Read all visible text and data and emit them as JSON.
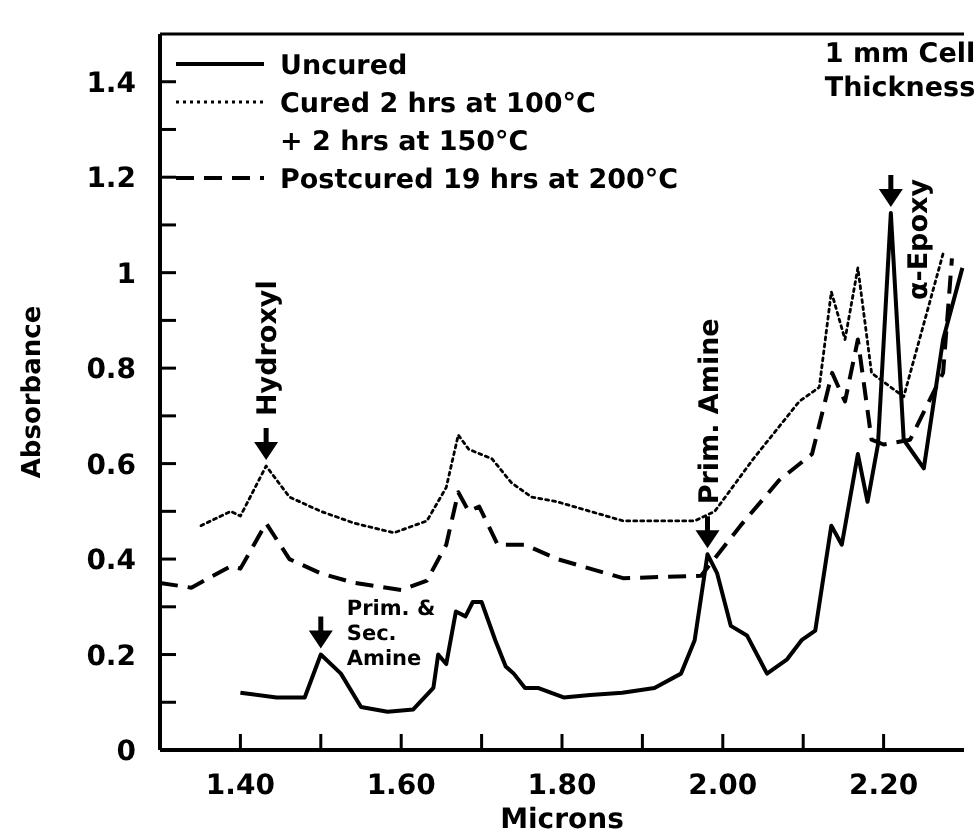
{
  "chart_data": {
    "type": "line",
    "xlabel": "Microns",
    "ylabel": "Absorbance",
    "xlim": [
      1.3,
      2.3
    ],
    "ylim": [
      0,
      1.5
    ],
    "xticks": [
      {
        "value": 1.4,
        "label": "1.40"
      },
      {
        "value": 1.5,
        "label": null
      },
      {
        "value": 1.6,
        "label": "1.60"
      },
      {
        "value": 1.7,
        "label": null
      },
      {
        "value": 1.8,
        "label": "1.80"
      },
      {
        "value": 1.9,
        "label": null
      },
      {
        "value": 2.0,
        "label": "2.00"
      },
      {
        "value": 2.1,
        "label": null
      },
      {
        "value": 2.2,
        "label": "2.20"
      }
    ],
    "yticks": [
      0,
      {
        "value": 0.1,
        "label": null
      },
      0.2,
      {
        "value": 0.3,
        "label": null
      },
      0.4,
      {
        "value": 0.5,
        "label": null
      },
      0.6,
      {
        "value": 0.7,
        "label": null
      },
      0.8,
      {
        "value": 0.9,
        "label": null
      },
      1.0,
      {
        "value": 1.1,
        "label": null
      },
      1.2,
      {
        "value": 1.3,
        "label": null
      },
      1.4
    ],
    "grid": false,
    "legend": "top left",
    "marker": "none",
    "series": [
      {
        "name": "Uncured",
        "color": "#000000",
        "line_style": "solid",
        "x": [
          1.4,
          1.445,
          1.48,
          1.5,
          1.525,
          1.55,
          1.583,
          1.615,
          1.64,
          1.646,
          1.656,
          1.668,
          1.68,
          1.689,
          1.7,
          1.717,
          1.73,
          1.74,
          1.754,
          1.77,
          1.802,
          1.835,
          1.875,
          1.915,
          1.948,
          1.965,
          1.981,
          1.993,
          2.01,
          2.03,
          2.055,
          2.08,
          2.098,
          2.115,
          2.135,
          2.148,
          2.168,
          2.18,
          2.193,
          2.209,
          2.225,
          2.25,
          2.274,
          2.298
        ],
        "values": [
          0.12,
          0.11,
          0.11,
          0.2,
          0.16,
          0.09,
          0.08,
          0.085,
          0.13,
          0.2,
          0.18,
          0.29,
          0.28,
          0.31,
          0.31,
          0.23,
          0.175,
          0.16,
          0.13,
          0.13,
          0.11,
          0.115,
          0.12,
          0.13,
          0.16,
          0.23,
          0.41,
          0.37,
          0.26,
          0.24,
          0.16,
          0.19,
          0.23,
          0.25,
          0.47,
          0.43,
          0.62,
          0.52,
          0.64,
          1.125,
          0.65,
          0.59,
          0.86,
          1.01
        ]
      },
      {
        "name": "Cured 2 hrs at 100°C\n+ 2 hrs at 150°C",
        "color": "#000000",
        "line_style": "dotted",
        "x": [
          1.351,
          1.388,
          1.4,
          1.432,
          1.461,
          1.5,
          1.542,
          1.591,
          1.632,
          1.656,
          1.671,
          1.684,
          1.713,
          1.737,
          1.762,
          1.794,
          1.876,
          1.9,
          1.965,
          1.99,
          2.038,
          2.095,
          2.12,
          2.135,
          2.152,
          2.168,
          2.185,
          2.225,
          2.274
        ],
        "values": [
          0.47,
          0.5,
          0.49,
          0.595,
          0.53,
          0.5,
          0.475,
          0.455,
          0.48,
          0.55,
          0.66,
          0.63,
          0.61,
          0.56,
          0.53,
          0.52,
          0.48,
          0.48,
          0.48,
          0.5,
          0.61,
          0.73,
          0.76,
          0.96,
          0.86,
          1.01,
          0.79,
          0.74,
          1.04
        ]
      },
      {
        "name": "Postcured 19 hrs at 200°C",
        "color": "#000000",
        "line_style": "dashed",
        "x": [
          1.3,
          1.339,
          1.388,
          1.4,
          1.432,
          1.461,
          1.5,
          1.542,
          1.6,
          1.632,
          1.656,
          1.671,
          1.684,
          1.697,
          1.72,
          1.74,
          1.754,
          1.794,
          1.876,
          1.973,
          2.022,
          2.07,
          2.111,
          2.136,
          2.152,
          2.168,
          2.185,
          2.2,
          2.233,
          2.274,
          2.285
        ],
        "values": [
          0.35,
          0.34,
          0.385,
          0.38,
          0.475,
          0.4,
          0.37,
          0.35,
          0.335,
          0.355,
          0.43,
          0.54,
          0.5,
          0.51,
          0.43,
          0.43,
          0.43,
          0.4,
          0.36,
          0.365,
          0.47,
          0.565,
          0.62,
          0.79,
          0.73,
          0.86,
          0.65,
          0.64,
          0.65,
          0.79,
          1.03
        ]
      }
    ],
    "annotations": [
      "1 mm Cell\nThickness",
      {
        "text": "Hydroxyl",
        "x": 1.432,
        "y": 0.595
      },
      {
        "text": "Prim. & Sec.\nAmine",
        "x": 1.5,
        "y": 0.2
      },
      {
        "text": "Prim. Amine",
        "x": 1.981,
        "y": 0.41
      },
      {
        "text": "α-Epoxy",
        "x": 2.209,
        "y": 1.125
      }
    ]
  }
}
